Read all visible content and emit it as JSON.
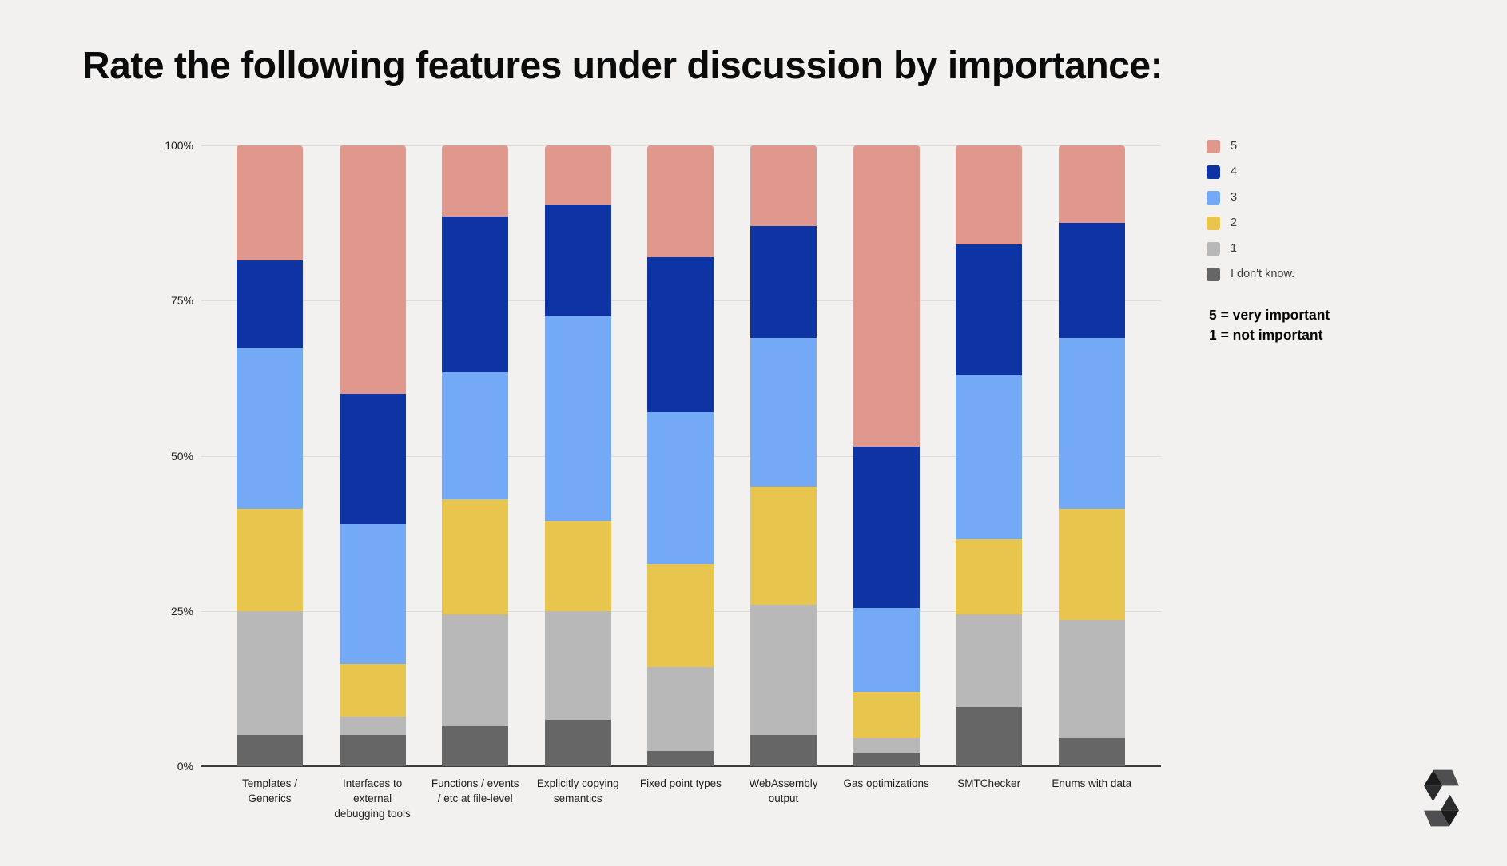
{
  "header": {
    "title": "Rate the following features under discussion by importance:"
  },
  "chart_data": {
    "type": "bar",
    "stacked": true,
    "unit": "percent",
    "title": "Rate the following features under discussion by importance:",
    "categories": [
      "Templates / Generics",
      "Interfaces to external debugging tools",
      "Functions / events / etc at file-level",
      "Explicitly copying semantics",
      "Fixed point types",
      "WebAssembly output",
      "Gas optimizations",
      "SMTChecker",
      "Enums with data"
    ],
    "series": [
      {
        "name": "5",
        "color": "#df988b",
        "values": [
          18.5,
          40.0,
          11.5,
          9.5,
          18.0,
          13.0,
          48.5,
          16.0,
          12.5
        ]
      },
      {
        "name": "4",
        "color": "#0e34a3",
        "values": [
          14.0,
          21.0,
          25.0,
          18.0,
          25.0,
          18.0,
          26.0,
          21.0,
          18.5
        ]
      },
      {
        "name": "3",
        "color": "#74aaf5",
        "values": [
          26.0,
          22.5,
          20.5,
          33.0,
          24.5,
          24.0,
          13.5,
          26.5,
          27.5
        ]
      },
      {
        "name": "2",
        "color": "#e8c64e",
        "values": [
          16.5,
          8.5,
          18.5,
          14.5,
          16.5,
          19.0,
          7.5,
          12.0,
          18.0
        ]
      },
      {
        "name": "1",
        "color": "#b8b8b8",
        "values": [
          20.0,
          3.0,
          18.0,
          17.5,
          13.5,
          21.0,
          2.5,
          15.0,
          19.0
        ]
      },
      {
        "name": "I don't know.",
        "color": "#666666",
        "values": [
          5.0,
          5.0,
          6.5,
          7.5,
          2.5,
          5.0,
          2.0,
          9.5,
          4.5
        ]
      }
    ],
    "y_ticks": [
      {
        "label": "100%",
        "value": 100
      },
      {
        "label": "75%",
        "value": 75
      },
      {
        "label": "50%",
        "value": 50
      },
      {
        "label": "25%",
        "value": 25
      },
      {
        "label": "0%",
        "value": 0
      }
    ],
    "ylim": [
      0,
      100
    ],
    "grid": true,
    "legend_position": "right",
    "notes": [
      "5 = very important",
      "1 = not important"
    ]
  },
  "colors": {
    "background": "#f2f1ef",
    "gridline": "#dcdcda",
    "axis": "#3a3a3a",
    "logo_dark": "#1b1b1c",
    "logo_mid": "#2c2c2e",
    "logo_light": "#4f4f52"
  },
  "logo": {
    "name": "Solidity logo"
  }
}
